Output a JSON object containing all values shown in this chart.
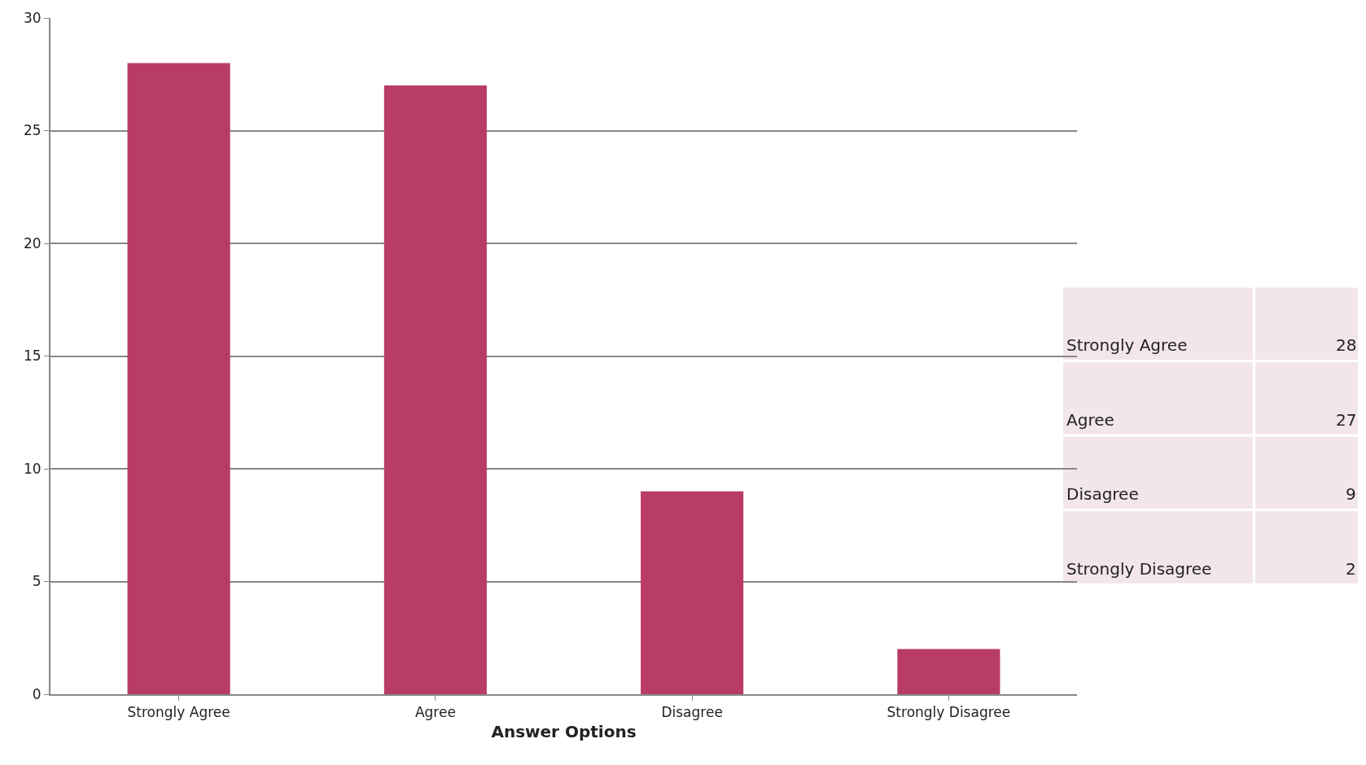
{
  "chart_data": {
    "type": "bar",
    "xlabel": "Answer Options",
    "categories": [
      "Strongly Agree",
      "Agree",
      "Disagree",
      "Strongly Disagree"
    ],
    "values": [
      28,
      27,
      9,
      2
    ],
    "color": "#b83c66",
    "ylim": [
      0,
      30
    ],
    "yticks": [
      0,
      5,
      10,
      15,
      20,
      25,
      30
    ],
    "grid": "y",
    "legend": false,
    "annotations": [
      "Strongly Agree",
      "28",
      "Agree",
      "27",
      "Disagree",
      "9",
      "Strongly Disagree",
      "2"
    ]
  }
}
